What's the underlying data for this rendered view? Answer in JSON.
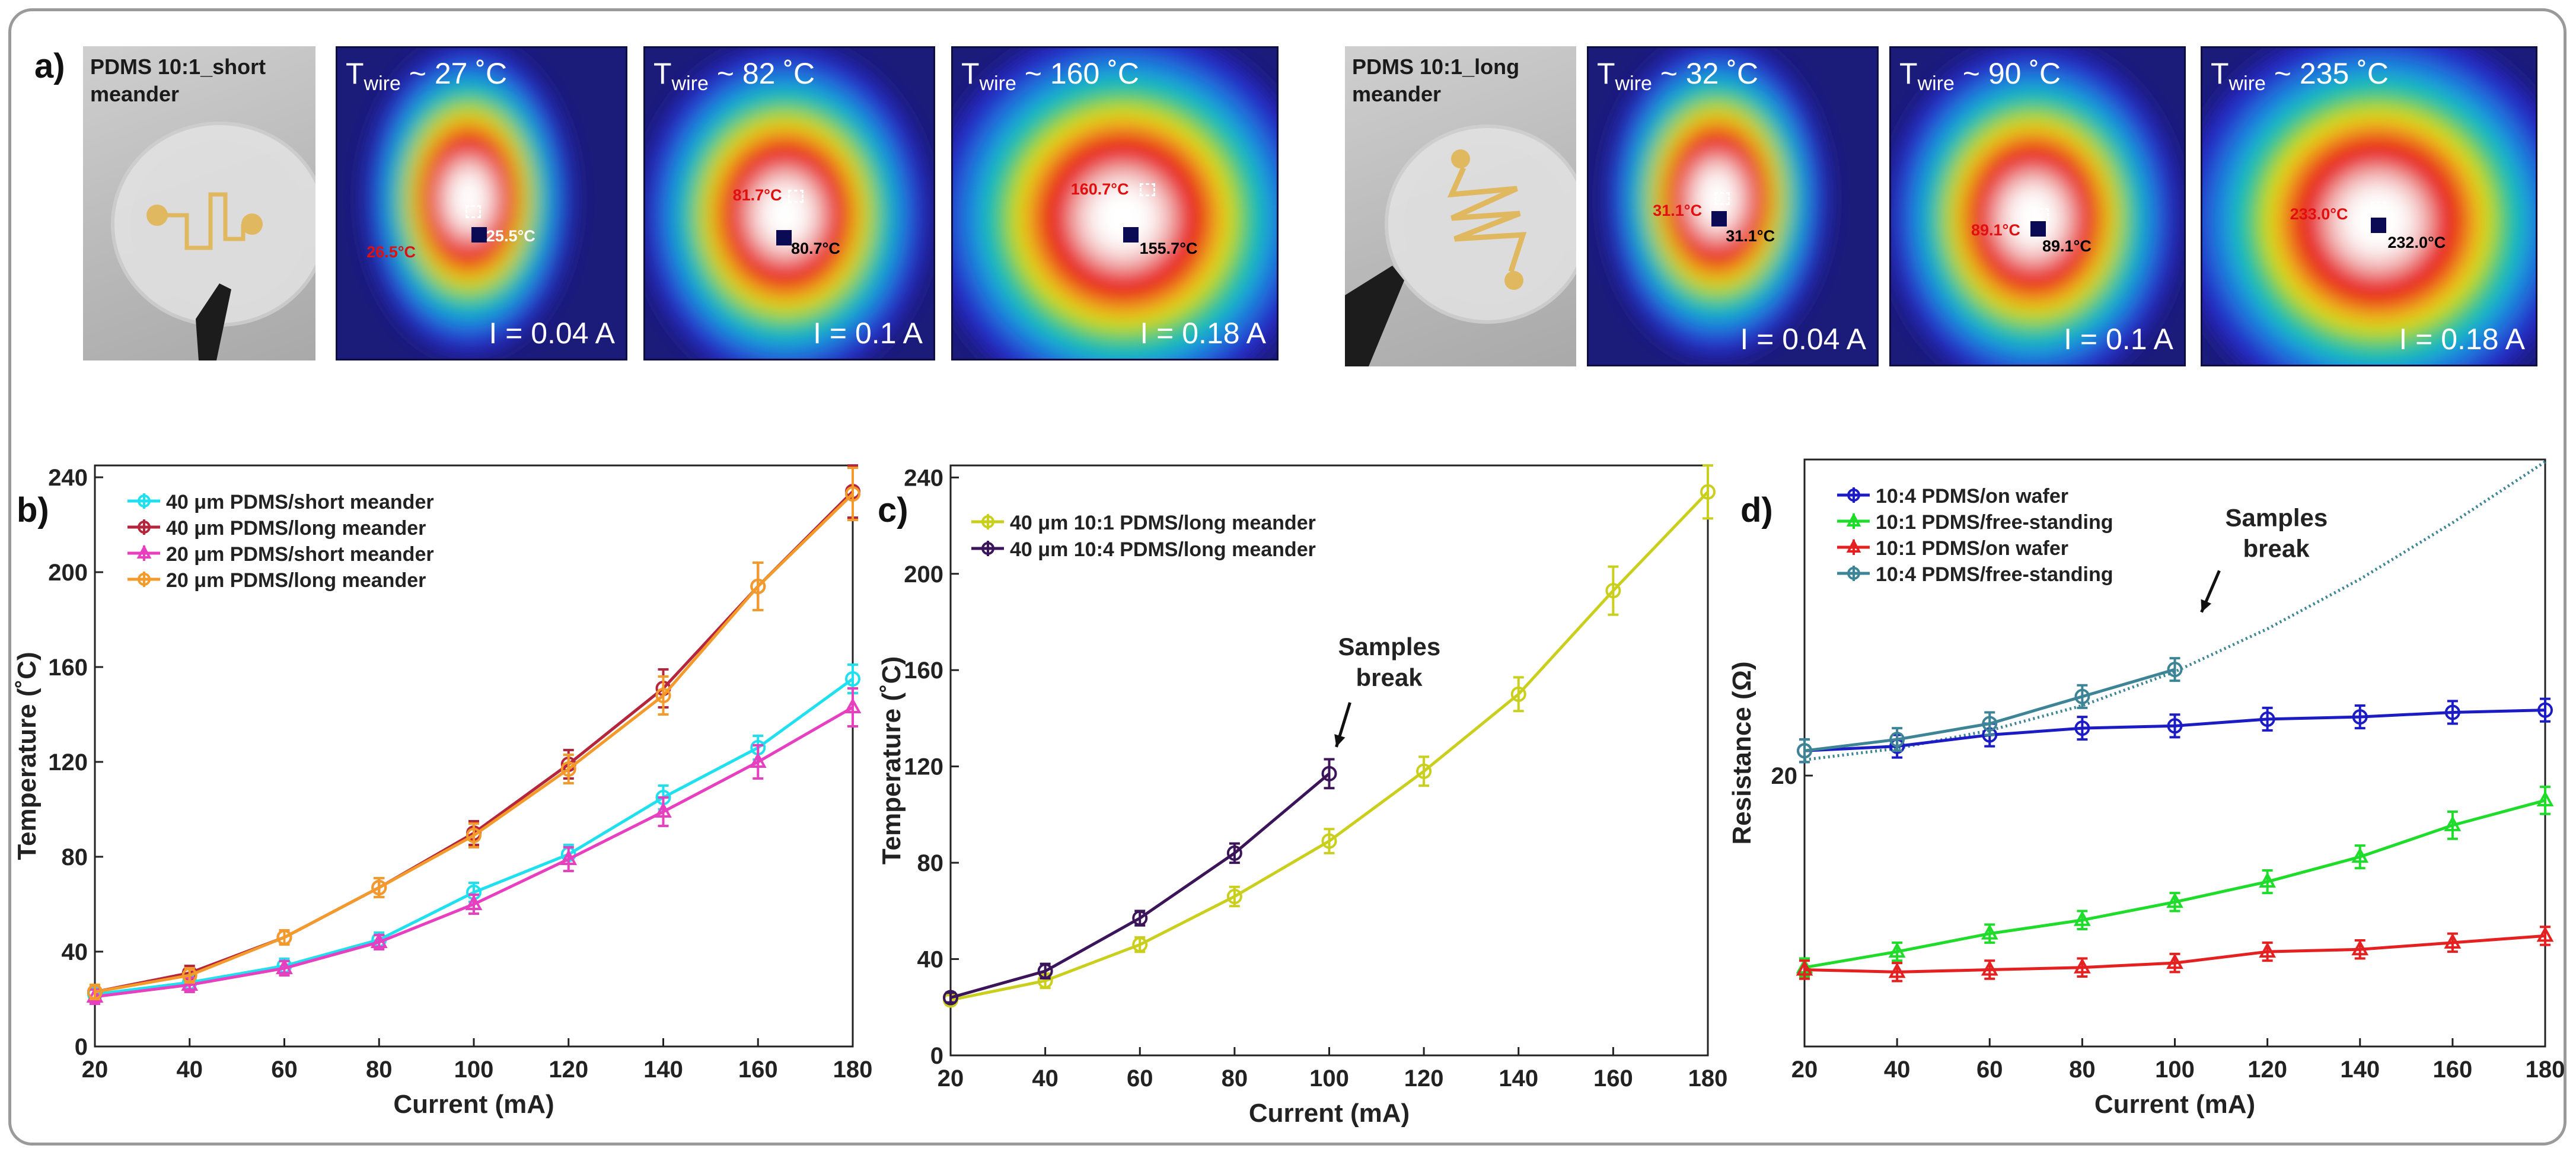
{
  "panel_labels": {
    "a": "a)",
    "b": "b)",
    "c": "c)",
    "d": "d)"
  },
  "photos": [
    {
      "id": "short",
      "caption_line1": "PDMS 10:1_short",
      "caption_line2": "meander",
      "wire": "short"
    },
    {
      "id": "long",
      "caption_line1": "PDMS 10:1_long",
      "caption_line2": "meander",
      "wire": "long"
    }
  ],
  "thermal_images": [
    {
      "twire_prefix": "T",
      "twire_sub": "wire",
      "twire_value": " ~ 27 ˚C",
      "current": "I = 0.04 A",
      "red_label": "26.5°C",
      "marker_label": "25.5°C",
      "blob": "short-small"
    },
    {
      "twire_prefix": "T",
      "twire_sub": "wire",
      "twire_value": " ~ 82 ˚C",
      "current": "I = 0.1 A",
      "red_label": "81.7°C",
      "marker_label": "80.7°C",
      "blob": "medium"
    },
    {
      "twire_prefix": "T",
      "twire_sub": "wire",
      "twire_value": " ~ 160 ˚C",
      "current": "I = 0.18 A",
      "red_label": "160.7°C",
      "marker_label": "155.7°C",
      "blob": "large"
    },
    {
      "twire_prefix": "T",
      "twire_sub": "wire",
      "twire_value": " ~ 32 ˚C",
      "current": "I = 0.04 A",
      "red_label": "31.1°C",
      "marker_label": "31.1°C",
      "blob": "long-small"
    },
    {
      "twire_prefix": "T",
      "twire_sub": "wire",
      "twire_value": " ~ 90 ˚C",
      "current": "I = 0.1 A",
      "red_label": "89.1°C",
      "marker_label": "89.1°C",
      "blob": "medium"
    },
    {
      "twire_prefix": "T",
      "twire_sub": "wire",
      "twire_value": " ~ 235 ˚C",
      "current": "I = 0.18 A",
      "red_label": "233.0°C",
      "marker_label": "232.0°C",
      "blob": "large"
    }
  ],
  "chart_data": [
    {
      "panel": "b",
      "type": "line",
      "xlabel": "Current (mA)",
      "ylabel": "Temperature (˚C)",
      "xlim": [
        20,
        180
      ],
      "ylim": [
        0,
        245
      ],
      "xticks": [
        20,
        40,
        60,
        80,
        100,
        120,
        140,
        160,
        180
      ],
      "yticks": [
        0,
        40,
        80,
        120,
        160,
        200,
        240
      ],
      "legend_position": "top-left",
      "series": [
        {
          "name": "40 μm PDMS/short meander",
          "color": "#1ee0ee",
          "marker": "o",
          "x": [
            20,
            40,
            60,
            80,
            100,
            120,
            140,
            160,
            180
          ],
          "y": [
            22,
            27,
            34,
            45,
            65,
            81,
            105,
            126,
            155
          ],
          "err": [
            3,
            3,
            3,
            3,
            4,
            4,
            5,
            5,
            6
          ]
        },
        {
          "name": "40 μm PDMS/long meander",
          "color": "#b5263c",
          "marker": "o",
          "x": [
            20,
            40,
            60,
            80,
            100,
            120,
            140,
            160,
            180
          ],
          "y": [
            23,
            31,
            46,
            67,
            90,
            119,
            151,
            194,
            234
          ],
          "err": [
            3,
            3,
            3,
            4,
            5,
            6,
            8,
            10,
            11
          ]
        },
        {
          "name": "20 μm PDMS/short meander",
          "color": "#e83fc0",
          "marker": "^",
          "x": [
            20,
            40,
            60,
            80,
            100,
            120,
            140,
            160,
            180
          ],
          "y": [
            21,
            26,
            33,
            44,
            60,
            79,
            99,
            120,
            143
          ],
          "err": [
            3,
            3,
            3,
            3,
            4,
            5,
            6,
            7,
            8
          ]
        },
        {
          "name": "20 μm PDMS/long meander",
          "color": "#f39a2a",
          "marker": "o",
          "x": [
            20,
            40,
            60,
            80,
            100,
            120,
            140,
            160,
            180
          ],
          "y": [
            23,
            30,
            46,
            67,
            89,
            117,
            148,
            194,
            233
          ],
          "err": [
            3,
            3,
            3,
            4,
            5,
            6,
            8,
            10,
            11
          ]
        }
      ]
    },
    {
      "panel": "c",
      "type": "line",
      "xlabel": "Current (mA)",
      "ylabel": "Temperature (˚C)",
      "xlim": [
        20,
        180
      ],
      "ylim": [
        0,
        245
      ],
      "xticks": [
        20,
        40,
        60,
        80,
        100,
        120,
        140,
        160,
        180
      ],
      "yticks": [
        0,
        40,
        80,
        120,
        160,
        200,
        240
      ],
      "legend_position": "top-left",
      "annotation": {
        "line1": "Samples",
        "line2": "break",
        "x": 100,
        "y": 117
      },
      "series": [
        {
          "name": "40 μm 10:1 PDMS/long meander",
          "color": "#c9cf1c",
          "marker": "o",
          "x": [
            20,
            40,
            60,
            80,
            100,
            120,
            140,
            160,
            180
          ],
          "y": [
            23,
            31,
            46,
            66,
            89,
            118,
            150,
            193,
            234
          ],
          "err": [
            2,
            3,
            3,
            4,
            5,
            6,
            7,
            10,
            11
          ]
        },
        {
          "name": "40 μm 10:4 PDMS/long meander",
          "color": "#3b1459",
          "marker": "o",
          "x": [
            20,
            40,
            60,
            80,
            100
          ],
          "y": [
            24,
            35,
            57,
            84,
            117
          ],
          "err": [
            2,
            3,
            3,
            4,
            6
          ]
        }
      ]
    },
    {
      "panel": "d",
      "type": "line",
      "xlabel": "Current (mA)",
      "ylabel": "Resistance (Ω)",
      "xlim": [
        20,
        180
      ],
      "ylim": [
        8,
        34
      ],
      "xticks": [
        20,
        40,
        60,
        80,
        100,
        120,
        140,
        160,
        180
      ],
      "yticks": [
        20
      ],
      "legend_position": "top-left",
      "annotation": {
        "line1": "Samples",
        "line2": "break",
        "x": 100,
        "y": 25.4
      },
      "series": [
        {
          "name": "10:4 PDMS/on wafer",
          "color": "#1c1cc4",
          "marker": "o",
          "x": [
            20,
            40,
            60,
            80,
            100,
            120,
            140,
            160,
            180
          ],
          "y": [
            21.1,
            21.3,
            21.8,
            22.1,
            22.2,
            22.5,
            22.6,
            22.8,
            22.9
          ],
          "err": [
            0.5,
            0.5,
            0.5,
            0.5,
            0.5,
            0.5,
            0.5,
            0.5,
            0.5
          ]
        },
        {
          "name": "10:1 PDMS/free-standing",
          "color": "#1fdc2a",
          "marker": "^",
          "x": [
            20,
            40,
            60,
            80,
            100,
            120,
            140,
            160,
            180
          ],
          "y": [
            11.5,
            12.2,
            13.0,
            13.6,
            14.4,
            15.3,
            16.4,
            17.8,
            18.9
          ],
          "err": [
            0.4,
            0.4,
            0.4,
            0.4,
            0.4,
            0.5,
            0.5,
            0.6,
            0.6
          ]
        },
        {
          "name": "10:1 PDMS/on wafer",
          "color": "#e42020",
          "marker": "^",
          "x": [
            20,
            40,
            60,
            80,
            100,
            120,
            140,
            160,
            180
          ],
          "y": [
            11.4,
            11.3,
            11.4,
            11.5,
            11.7,
            12.2,
            12.3,
            12.6,
            12.9
          ],
          "err": [
            0.4,
            0.4,
            0.4,
            0.4,
            0.4,
            0.4,
            0.4,
            0.4,
            0.4
          ]
        },
        {
          "name": "10:4 PDMS/free-standing",
          "color": "#3d8596",
          "marker": "o",
          "x": [
            20,
            40,
            60,
            80,
            100
          ],
          "y": [
            21.1,
            21.6,
            22.3,
            23.5,
            24.7
          ],
          "err": [
            0.5,
            0.5,
            0.5,
            0.5,
            0.5
          ]
        }
      ],
      "fit": {
        "color": "#3d8596",
        "style": "dotted",
        "x": [
          20,
          40,
          60,
          80,
          100,
          120,
          140,
          160,
          180
        ],
        "y": [
          20.7,
          21.2,
          22.0,
          23.1,
          24.6,
          26.5,
          28.7,
          31.2,
          33.9
        ]
      }
    }
  ]
}
